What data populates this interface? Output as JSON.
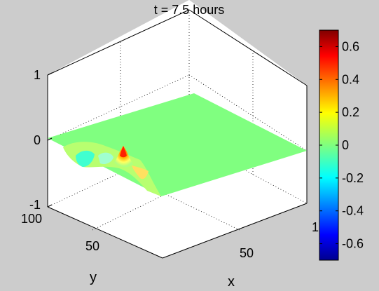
{
  "chart_data": {
    "type": "surface3d",
    "title": "t = 7.5 hours",
    "xlabel": "x",
    "ylabel": "y",
    "zlabel": "",
    "xlim": [
      0,
      100
    ],
    "ylim": [
      0,
      100
    ],
    "zlim": [
      -1,
      1
    ],
    "x_ticks": [
      "50",
      "100"
    ],
    "y_ticks": [
      "50",
      "100"
    ],
    "z_ticks": [
      "-1",
      "0",
      "1"
    ],
    "colorbar": {
      "colormap": "jet",
      "range": [
        -0.7,
        0.7
      ],
      "ticks": [
        "0.6",
        "0.4",
        "0.2",
        "0",
        "-0.2",
        "-0.4",
        "-0.6"
      ]
    },
    "surface": {
      "baseline_z": 0,
      "features": [
        {
          "kind": "peak",
          "x": 0,
          "y": 40,
          "z": 0.65
        },
        {
          "kind": "trough",
          "x": 0,
          "y": 60,
          "z": -0.35
        },
        {
          "kind": "trough",
          "x": 0,
          "y": 30,
          "z": -0.2
        }
      ]
    },
    "grid": true,
    "box": true
  }
}
